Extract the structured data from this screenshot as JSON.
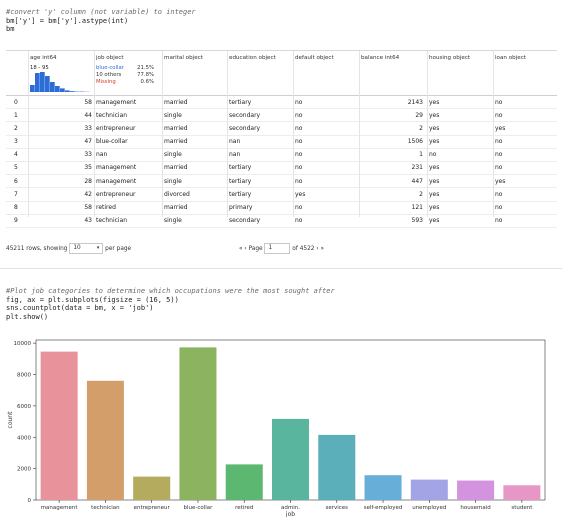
{
  "cell1": {
    "comment": "#convert 'y' column (not variable) to integer",
    "line1": "bm['y'] = bm['y'].astype(int)",
    "line2": "bm"
  },
  "dataframe": {
    "columns": [
      {
        "name": "age",
        "dtype": "int64"
      },
      {
        "name": "job",
        "dtype": "object"
      },
      {
        "name": "marital",
        "dtype": "object"
      },
      {
        "name": "education",
        "dtype": "object"
      },
      {
        "name": "default",
        "dtype": "object"
      },
      {
        "name": "balance",
        "dtype": "int64"
      },
      {
        "name": "housing",
        "dtype": "object"
      },
      {
        "name": "loan",
        "dtype": "object"
      }
    ],
    "age_summary": {
      "range": "18 - 95",
      "histogram": [
        0.35,
        0.95,
        1.0,
        0.8,
        0.5,
        0.3,
        0.18,
        0.08,
        0.04,
        0.02,
        0.02,
        0.01
      ]
    },
    "job_summary": [
      {
        "label": "blue-collar",
        "pct": "21.5%",
        "color": "#2b6cd6"
      },
      {
        "label": "10 others",
        "pct": "77.8%",
        "color": "#333333"
      },
      {
        "label": "Missing",
        "pct": "0.6%",
        "color": "#d23a2a"
      }
    ],
    "rows": [
      {
        "idx": "0",
        "age": "58",
        "job": "management",
        "marital": "married",
        "education": "tertiary",
        "default": "no",
        "balance": "2143",
        "housing": "yes",
        "loan": "no"
      },
      {
        "idx": "1",
        "age": "44",
        "job": "technician",
        "marital": "single",
        "education": "secondary",
        "default": "no",
        "balance": "29",
        "housing": "yes",
        "loan": "no"
      },
      {
        "idx": "2",
        "age": "33",
        "job": "entrepreneur",
        "marital": "married",
        "education": "secondary",
        "default": "no",
        "balance": "2",
        "housing": "yes",
        "loan": "yes"
      },
      {
        "idx": "3",
        "age": "47",
        "job": "blue-collar",
        "marital": "married",
        "education": "nan",
        "default": "no",
        "balance": "1506",
        "housing": "yes",
        "loan": "no"
      },
      {
        "idx": "4",
        "age": "33",
        "job": "nan",
        "marital": "single",
        "education": "nan",
        "default": "no",
        "balance": "1",
        "housing": "no",
        "loan": "no"
      },
      {
        "idx": "5",
        "age": "35",
        "job": "management",
        "marital": "married",
        "education": "tertiary",
        "default": "no",
        "balance": "231",
        "housing": "yes",
        "loan": "no"
      },
      {
        "idx": "6",
        "age": "28",
        "job": "management",
        "marital": "single",
        "education": "tertiary",
        "default": "no",
        "balance": "447",
        "housing": "yes",
        "loan": "yes"
      },
      {
        "idx": "7",
        "age": "42",
        "job": "entrepreneur",
        "marital": "divorced",
        "education": "tertiary",
        "default": "yes",
        "balance": "2",
        "housing": "yes",
        "loan": "no"
      },
      {
        "idx": "8",
        "age": "58",
        "job": "retired",
        "marital": "married",
        "education": "primary",
        "default": "no",
        "balance": "121",
        "housing": "yes",
        "loan": "no"
      },
      {
        "idx": "9",
        "age": "43",
        "job": "technician",
        "marital": "single",
        "education": "secondary",
        "default": "no",
        "balance": "593",
        "housing": "yes",
        "loan": "no"
      }
    ],
    "footer": {
      "rows_text": "45211 rows, showing",
      "page_size": "10",
      "per_page": "per page",
      "page_label": "Page",
      "page_value": "1",
      "of_pages": "of 4522"
    }
  },
  "cell2": {
    "comment": "#Plot job categories to determine which occupations were the most sought after",
    "line1": "fig, ax = plt.subplots(figsize = (16, 5))",
    "line2": "sns.countplot(data = bm, x = 'job')",
    "line3": "plt.show()"
  },
  "chart_data": {
    "type": "bar",
    "categories": [
      "management",
      "technician",
      "entrepreneur",
      "blue-collar",
      "retired",
      "admin.",
      "services",
      "self-employed",
      "unemployed",
      "housemaid",
      "student"
    ],
    "values": [
      9460,
      7600,
      1490,
      9730,
      2270,
      5170,
      4150,
      1580,
      1300,
      1240,
      940
    ],
    "colors": [
      "#e8929b",
      "#d49e6b",
      "#b4ab5e",
      "#8cb360",
      "#5cb870",
      "#5ab59e",
      "#5aafbb",
      "#67aed8",
      "#a3a4e6",
      "#d393df",
      "#e797c6"
    ],
    "xlabel": "job",
    "ylabel": "count",
    "ylim": [
      0,
      10200
    ],
    "yticks": [
      0,
      2000,
      4000,
      6000,
      8000,
      10000
    ],
    "grid": false
  }
}
